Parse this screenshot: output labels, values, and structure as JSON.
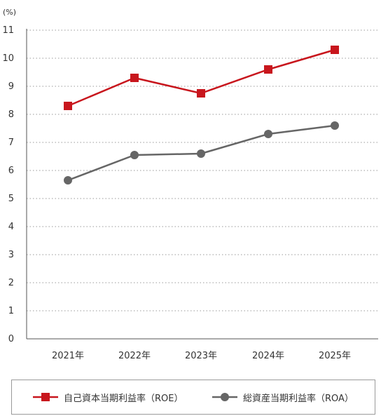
{
  "chart_data": {
    "type": "line",
    "unit_label": "(%)",
    "categories": [
      "2021年",
      "2022年",
      "2023年",
      "2024年",
      "2025年"
    ],
    "ylim": [
      0,
      11
    ],
    "yticks": [
      0,
      1,
      2,
      3,
      4,
      5,
      6,
      7,
      8,
      9,
      10,
      11
    ],
    "grid": true,
    "legend_position": "bottom",
    "series": [
      {
        "name": "自己資本当期利益率（ROE）",
        "color": "#c8161d",
        "marker": "square",
        "values": [
          8.3,
          9.3,
          8.75,
          9.6,
          10.3
        ]
      },
      {
        "name": "総資産当期利益率（ROA）",
        "color": "#666666",
        "marker": "circle",
        "values": [
          5.65,
          6.55,
          6.6,
          7.3,
          7.6
        ]
      }
    ]
  }
}
